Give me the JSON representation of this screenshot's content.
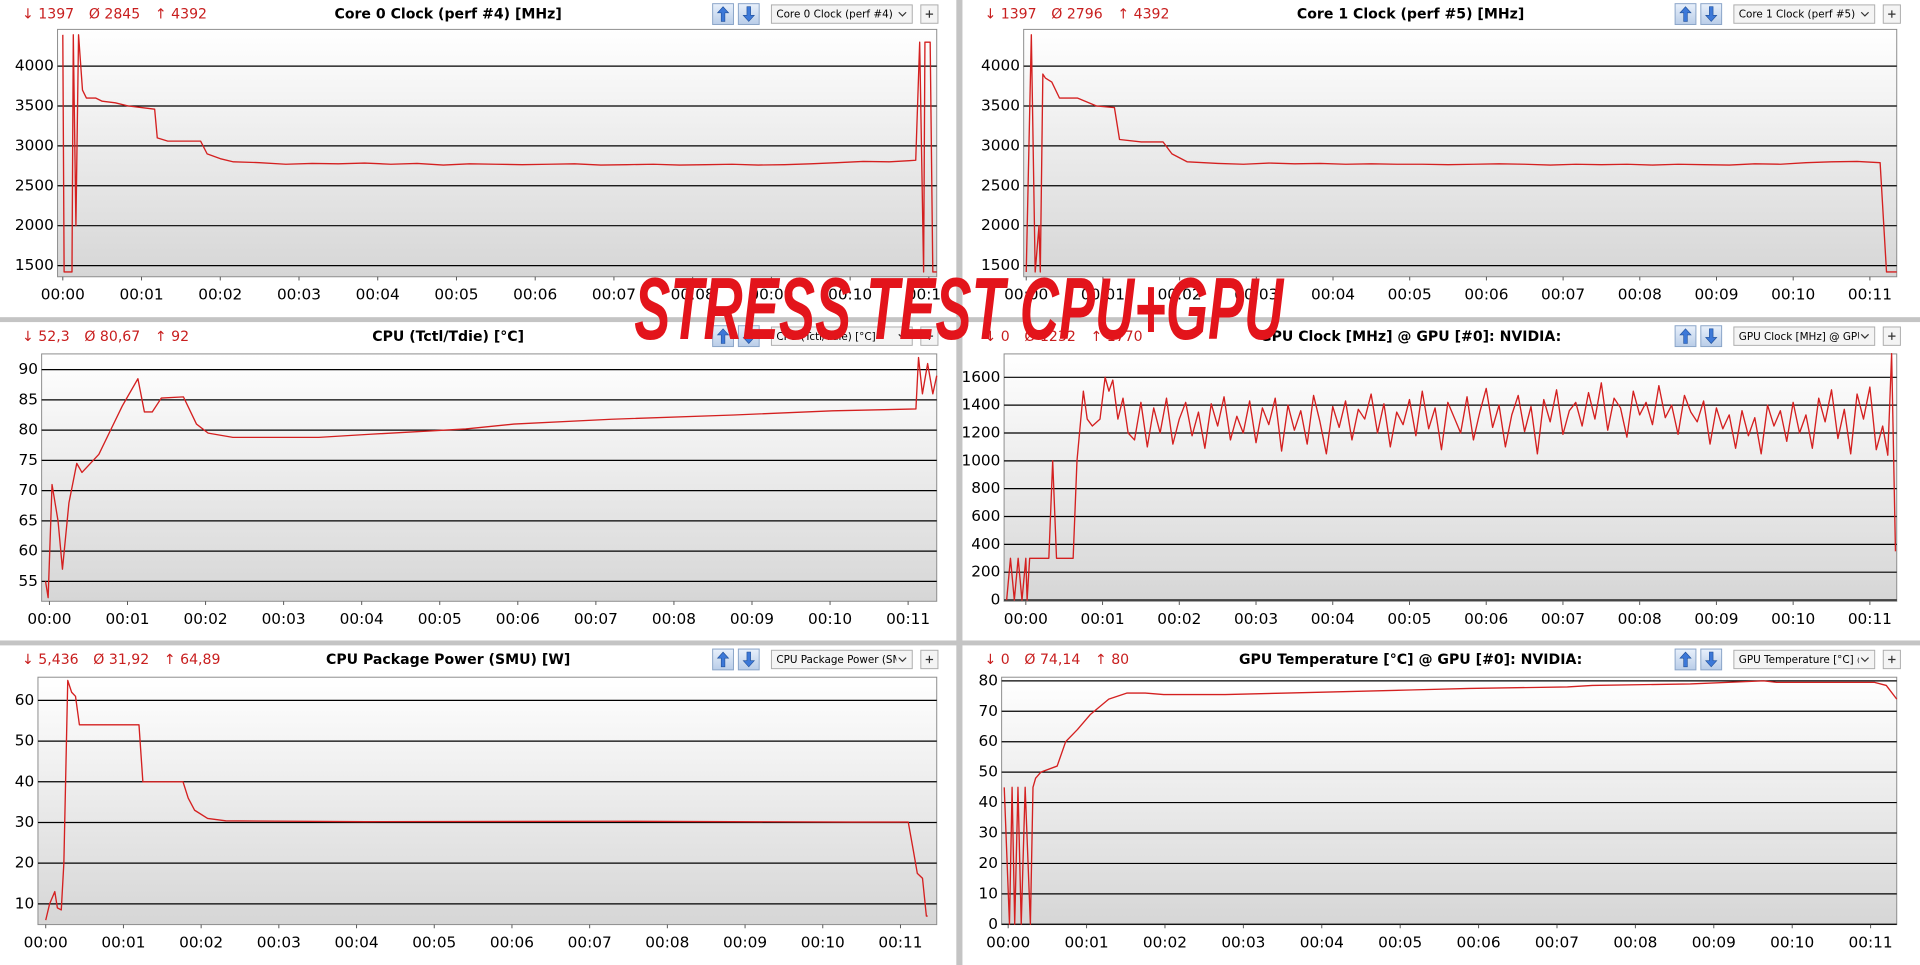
{
  "overlay_title": "STRESS TEST CPU+GPU",
  "chart_data": [
    {
      "type": "line",
      "title": "Core 0 Clock (perf #4) [MHz]",
      "stats": [
        "↓ 1397",
        "Ø 2845",
        "↑ 4392"
      ],
      "dropdown": "Core 0 Clock (perf #4) [M",
      "color": "#d42020",
      "grid": true,
      "x": [
        0,
        1,
        7,
        8,
        10,
        12,
        15,
        18,
        25,
        30,
        40,
        50,
        60,
        70,
        72,
        80,
        105,
        110,
        120,
        130,
        150,
        170,
        190,
        210,
        230,
        250,
        270,
        290,
        310,
        330,
        350,
        370,
        390,
        410,
        430,
        450,
        470,
        490,
        510,
        530,
        550,
        570,
        590,
        610,
        630,
        645,
        650,
        653,
        656,
        657,
        661,
        663,
        666
      ],
      "values": [
        4392,
        1420,
        1420,
        4392,
        2000,
        4392,
        3700,
        3600,
        3600,
        3560,
        3540,
        3500,
        3480,
        3460,
        3100,
        3060,
        3060,
        2900,
        2840,
        2800,
        2790,
        2770,
        2780,
        2775,
        2785,
        2770,
        2780,
        2760,
        2775,
        2770,
        2765,
        2770,
        2775,
        2760,
        2765,
        2770,
        2760,
        2765,
        2770,
        2760,
        2765,
        2775,
        2790,
        2805,
        2800,
        2815,
        2820,
        4300,
        1420,
        4300,
        4300,
        1420,
        1420
      ],
      "xlim": [
        -4,
        666
      ],
      "ylim": [
        1360,
        4460
      ],
      "xticks": [
        {
          "value": 0,
          "label": "00:00"
        },
        {
          "value": 60,
          "label": "00:01"
        },
        {
          "value": 120,
          "label": "00:02"
        },
        {
          "value": 180,
          "label": "00:03"
        },
        {
          "value": 240,
          "label": "00:04"
        },
        {
          "value": 300,
          "label": "00:05"
        },
        {
          "value": 360,
          "label": "00:06"
        },
        {
          "value": 420,
          "label": "00:07"
        },
        {
          "value": 480,
          "label": "00:08"
        },
        {
          "value": 540,
          "label": "00:09"
        },
        {
          "value": 600,
          "label": "00:10"
        },
        {
          "value": 660,
          "label": "00:11"
        }
      ],
      "yticks": [
        1500,
        2000,
        2500,
        3000,
        3500,
        4000
      ]
    },
    {
      "type": "line",
      "title": "Core 1 Clock (perf #5) [MHz]",
      "stats": [
        "↓ 1397",
        "Ø 2796",
        "↑ 4392"
      ],
      "dropdown": "Core 1 Clock (perf #5) [M",
      "color": "#d42020",
      "grid": true,
      "x": [
        0,
        4,
        7,
        10,
        11,
        13,
        15,
        20,
        26,
        40,
        55,
        69,
        73,
        90,
        107,
        114,
        126,
        150,
        170,
        190,
        210,
        230,
        250,
        270,
        290,
        310,
        330,
        350,
        370,
        390,
        410,
        430,
        450,
        470,
        490,
        510,
        530,
        550,
        570,
        590,
        610,
        630,
        650,
        668,
        673,
        681
      ],
      "values": [
        1420,
        4392,
        1420,
        2000,
        1420,
        3900,
        3850,
        3800,
        3600,
        3600,
        3500,
        3480,
        3080,
        3050,
        3050,
        2900,
        2800,
        2780,
        2770,
        2785,
        2775,
        2780,
        2770,
        2775,
        2770,
        2770,
        2765,
        2770,
        2775,
        2770,
        2760,
        2770,
        2765,
        2770,
        2760,
        2770,
        2765,
        2760,
        2775,
        2770,
        2790,
        2800,
        2805,
        2790,
        1420,
        1420
      ],
      "xlim": [
        -2,
        681
      ],
      "ylim": [
        1360,
        4460
      ],
      "xticks": [
        {
          "value": 0,
          "label": "00:00"
        },
        {
          "value": 60,
          "label": "00:01"
        },
        {
          "value": 120,
          "label": "00:02"
        },
        {
          "value": 180,
          "label": "00:03"
        },
        {
          "value": 240,
          "label": "00:04"
        },
        {
          "value": 300,
          "label": "00:05"
        },
        {
          "value": 360,
          "label": "00:06"
        },
        {
          "value": 420,
          "label": "00:07"
        },
        {
          "value": 480,
          "label": "00:08"
        },
        {
          "value": 540,
          "label": "00:09"
        },
        {
          "value": 600,
          "label": "00:10"
        },
        {
          "value": 660,
          "label": "00:11"
        }
      ],
      "yticks": [
        1500,
        2000,
        2500,
        3000,
        3500,
        4000
      ]
    },
    {
      "type": "line",
      "title": "CPU (Tctl/Tdie) [°C]",
      "stats": [
        "↓ 52,3",
        "Ø 80,67",
        "↑ 92"
      ],
      "dropdown": "CPU (Tctl/Tdie) [°C]",
      "color": "#d42020",
      "grid": true,
      "x": [
        -3,
        -1,
        2,
        6.6,
        10,
        15,
        21,
        25,
        38,
        47,
        56,
        68,
        73,
        79,
        86,
        103,
        113,
        122,
        141,
        207,
        245,
        320,
        357,
        432,
        526,
        602,
        666,
        668,
        671,
        675,
        679,
        682
      ],
      "values": [
        55,
        52.3,
        71,
        65,
        57,
        68,
        74.5,
        73,
        76,
        80,
        84,
        88.5,
        83,
        83,
        85.3,
        85.5,
        81,
        79.5,
        78.8,
        78.8,
        79.3,
        80.2,
        81,
        81.8,
        82.5,
        83.2,
        83.5,
        92,
        86,
        91,
        86,
        89
      ],
      "xlim": [
        -6,
        682
      ],
      "ylim": [
        51.7,
        92.6
      ],
      "xticks": [
        {
          "value": 0,
          "label": "00:00"
        },
        {
          "value": 60,
          "label": "00:01"
        },
        {
          "value": 120,
          "label": "00:02"
        },
        {
          "value": 180,
          "label": "00:03"
        },
        {
          "value": 240,
          "label": "00:04"
        },
        {
          "value": 300,
          "label": "00:05"
        },
        {
          "value": 360,
          "label": "00:06"
        },
        {
          "value": 420,
          "label": "00:07"
        },
        {
          "value": 480,
          "label": "00:08"
        },
        {
          "value": 540,
          "label": "00:09"
        },
        {
          "value": 600,
          "label": "00:10"
        },
        {
          "value": 660,
          "label": "00:11"
        }
      ],
      "yticks": [
        55,
        60,
        65,
        70,
        75,
        80,
        85,
        90
      ]
    },
    {
      "type": "line",
      "title": "GPU Clock [MHz] @ GPU [#0]: NVIDIA:",
      "stats": [
        "↓ 0",
        "Ø 1232",
        "↑ 1770"
      ],
      "dropdown": "GPU Clock [MHz] @ GPU",
      "color": "#d42020",
      "grid": true,
      "x": [
        -15,
        -12,
        -9,
        -6,
        -3,
        0,
        1,
        3,
        18,
        21,
        24,
        37,
        40,
        45,
        48,
        52,
        58,
        62,
        65,
        68,
        72,
        76,
        80,
        85,
        90,
        95,
        100,
        105,
        110,
        115,
        120,
        125,
        130,
        135,
        140,
        145,
        150,
        155,
        160,
        165,
        170,
        175,
        180,
        185,
        190,
        195,
        200,
        205,
        210,
        215,
        220,
        225,
        230,
        235,
        240,
        245,
        250,
        255,
        260,
        265,
        270,
        275,
        280,
        285,
        290,
        295,
        300,
        305,
        310,
        315,
        320,
        325,
        330,
        335,
        340,
        345,
        350,
        355,
        360,
        365,
        370,
        375,
        380,
        385,
        390,
        395,
        400,
        405,
        410,
        415,
        420,
        425,
        430,
        435,
        440,
        445,
        450,
        455,
        460,
        465,
        470,
        475,
        480,
        485,
        490,
        495,
        500,
        505,
        510,
        515,
        520,
        525,
        530,
        535,
        540,
        545,
        550,
        555,
        560,
        565,
        570,
        575,
        580,
        585,
        590,
        595,
        600,
        605,
        610,
        615,
        620,
        625,
        630,
        635,
        640,
        645,
        650,
        655,
        660,
        665,
        670,
        674,
        677,
        680
      ],
      "values": [
        0,
        300,
        0,
        300,
        0,
        300,
        0,
        300,
        300,
        1000,
        300,
        300,
        1000,
        1500,
        1300,
        1250,
        1300,
        1600,
        1500,
        1580,
        1300,
        1450,
        1200,
        1150,
        1420,
        1100,
        1380,
        1200,
        1450,
        1120,
        1300,
        1420,
        1180,
        1350,
        1090,
        1410,
        1250,
        1460,
        1150,
        1320,
        1200,
        1430,
        1130,
        1380,
        1260,
        1450,
        1070,
        1400,
        1220,
        1360,
        1120,
        1470,
        1280,
        1050,
        1390,
        1240,
        1430,
        1150,
        1370,
        1300,
        1480,
        1200,
        1410,
        1100,
        1350,
        1260,
        1440,
        1180,
        1500,
        1230,
        1380,
        1080,
        1420,
        1310,
        1200,
        1460,
        1150,
        1350,
        1520,
        1240,
        1400,
        1100,
        1330,
        1470,
        1210,
        1390,
        1050,
        1440,
        1280,
        1510,
        1190,
        1360,
        1420,
        1250,
        1490,
        1300,
        1560,
        1220,
        1450,
        1380,
        1170,
        1500,
        1330,
        1420,
        1260,
        1540,
        1310,
        1400,
        1190,
        1470,
        1350,
        1280,
        1430,
        1120,
        1380,
        1230,
        1330,
        1090,
        1360,
        1180,
        1310,
        1050,
        1400,
        1250,
        1360,
        1140,
        1420,
        1200,
        1330,
        1090,
        1450,
        1280,
        1510,
        1160,
        1370,
        1050,
        1480,
        1300,
        1530,
        1080,
        1250,
        1040,
        1770,
        350
      ],
      "xlim": [
        -17,
        681
      ],
      "ylim": [
        -9,
        1768
      ],
      "xticks": [
        {
          "value": 0,
          "label": "00:00"
        },
        {
          "value": 60,
          "label": "00:01"
        },
        {
          "value": 120,
          "label": "00:02"
        },
        {
          "value": 180,
          "label": "00:03"
        },
        {
          "value": 240,
          "label": "00:04"
        },
        {
          "value": 300,
          "label": "00:05"
        },
        {
          "value": 360,
          "label": "00:06"
        },
        {
          "value": 420,
          "label": "00:07"
        },
        {
          "value": 480,
          "label": "00:08"
        },
        {
          "value": 540,
          "label": "00:09"
        },
        {
          "value": 600,
          "label": "00:10"
        },
        {
          "value": 660,
          "label": "00:11"
        }
      ],
      "yticks": [
        0,
        200,
        400,
        600,
        800,
        1000,
        1200,
        1400,
        1600
      ]
    },
    {
      "type": "line",
      "title": "CPU Package Power (SMU) [W]",
      "stats": [
        "↓ 5,436",
        "Ø 31,92",
        "↑ 64,89"
      ],
      "dropdown": "CPU Package Power (SMU",
      "color": "#d42020",
      "grid": true,
      "x": [
        0,
        3,
        7,
        9,
        12,
        14,
        17,
        20,
        23,
        26,
        69,
        72,
        75,
        106,
        110,
        115,
        125,
        139,
        247,
        434,
        622,
        666,
        670,
        673,
        677,
        680,
        681
      ],
      "values": [
        6,
        10,
        13,
        9,
        8.5,
        20,
        64.9,
        62,
        61,
        54,
        54,
        54,
        40,
        40,
        36,
        33,
        31,
        30.4,
        30.2,
        30.3,
        30.1,
        30.1,
        23,
        17.5,
        16.3,
        7,
        7
      ],
      "xlim": [
        -6,
        688
      ],
      "ylim": [
        4.9,
        65.7
      ],
      "xticks": [
        {
          "value": 0,
          "label": "00:00"
        },
        {
          "value": 60,
          "label": "00:01"
        },
        {
          "value": 120,
          "label": "00:02"
        },
        {
          "value": 180,
          "label": "00:03"
        },
        {
          "value": 240,
          "label": "00:04"
        },
        {
          "value": 300,
          "label": "00:05"
        },
        {
          "value": 360,
          "label": "00:06"
        },
        {
          "value": 420,
          "label": "00:07"
        },
        {
          "value": 480,
          "label": "00:08"
        },
        {
          "value": 540,
          "label": "00:09"
        },
        {
          "value": 600,
          "label": "00:10"
        },
        {
          "value": 660,
          "label": "00:11"
        }
      ],
      "yticks": [
        10,
        20,
        30,
        40,
        50,
        60
      ]
    },
    {
      "type": "line",
      "title": "GPU Temperature [°C] @ GPU [#0]: NVIDIA:",
      "stats": [
        "↓ 0",
        "Ø 74,14",
        "↑ 80"
      ],
      "dropdown": "GPU Temperature [°C] @",
      "color": "#d42020",
      "grid": true,
      "x": [
        -3,
        1,
        3,
        5,
        7.5,
        10,
        13,
        17,
        19,
        21,
        25,
        37.5,
        44,
        53,
        63,
        77,
        91,
        105,
        119,
        166,
        213,
        260,
        307,
        353,
        428,
        447,
        522,
        578,
        588,
        663,
        672,
        680
      ],
      "values": [
        45,
        0,
        45,
        0,
        45,
        0,
        45,
        0,
        45,
        48,
        50,
        52,
        60,
        64,
        69,
        74,
        76,
        76,
        75.5,
        75.5,
        76,
        76.5,
        77,
        77.5,
        78,
        78.5,
        79,
        80,
        79.5,
        79.5,
        78.5,
        74
      ],
      "xlim": [
        -5,
        680
      ],
      "ylim": [
        -0.1,
        81.2
      ],
      "xticks": [
        {
          "value": 0,
          "label": "00:00"
        },
        {
          "value": 60,
          "label": "00:01"
        },
        {
          "value": 120,
          "label": "00:02"
        },
        {
          "value": 180,
          "label": "00:03"
        },
        {
          "value": 240,
          "label": "00:04"
        },
        {
          "value": 300,
          "label": "00:05"
        },
        {
          "value": 360,
          "label": "00:06"
        },
        {
          "value": 420,
          "label": "00:07"
        },
        {
          "value": 480,
          "label": "00:08"
        },
        {
          "value": 540,
          "label": "00:09"
        },
        {
          "value": 600,
          "label": "00:10"
        },
        {
          "value": 660,
          "label": "00:11"
        }
      ],
      "yticks": [
        0,
        10,
        20,
        30,
        40,
        50,
        60,
        70,
        80
      ]
    }
  ]
}
